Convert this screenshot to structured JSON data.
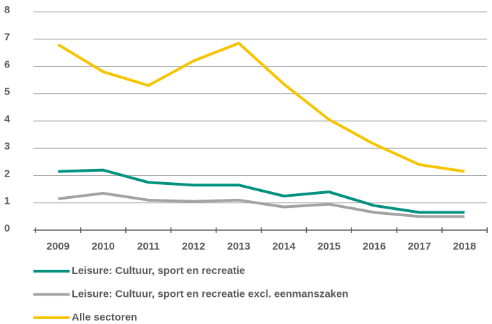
{
  "chart_data": {
    "type": "line",
    "categories": [
      "2009",
      "2010",
      "2011",
      "2012",
      "2013",
      "2014",
      "2015",
      "2016",
      "2017",
      "2018"
    ],
    "series": [
      {
        "name": "Leisure: Cultuur, sport en recreatie",
        "color": "#00927f",
        "values": [
          2.15,
          2.2,
          1.75,
          1.65,
          1.65,
          1.25,
          1.4,
          0.9,
          0.65,
          0.65
        ]
      },
      {
        "name": "Leisure: Cultuur, sport en recreatie excl. eenmanszaken",
        "color": "#a3a3a3",
        "values": [
          1.15,
          1.35,
          1.1,
          1.05,
          1.1,
          0.85,
          0.95,
          0.65,
          0.5,
          0.5
        ]
      },
      {
        "name": "Alle sectoren",
        "color": "#f7c400",
        "values": [
          6.8,
          5.8,
          5.3,
          6.2,
          6.85,
          5.35,
          4.05,
          3.15,
          2.4,
          2.15
        ]
      }
    ],
    "ylim": [
      0,
      8
    ],
    "yticks": [
      0,
      1,
      2,
      3,
      4,
      5,
      6,
      7,
      8
    ],
    "grid": true
  }
}
